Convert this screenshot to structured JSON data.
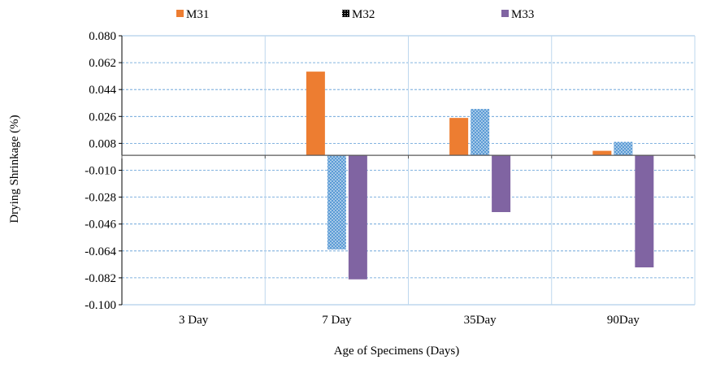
{
  "chart_data": {
    "type": "bar",
    "categories": [
      "3 Day",
      "7 Day",
      "35Day",
      "90Day"
    ],
    "series": [
      {
        "name": "M31",
        "values": [
          0,
          0.056,
          0.025,
          0.003
        ],
        "color": "#ED7D31",
        "pattern": "solid"
      },
      {
        "name": "M32",
        "values": [
          0,
          -0.063,
          0.031,
          0.009
        ],
        "color": "#5B9BD5",
        "pattern": "dotted"
      },
      {
        "name": "M33",
        "values": [
          0,
          -0.083,
          -0.038,
          -0.075
        ],
        "color": "#8064A2",
        "pattern": "solid"
      }
    ],
    "y_ticks": [
      "0.080",
      "0.062",
      "0.044",
      "0.026",
      "0.008",
      "-0.010",
      "-0.028",
      "-0.046",
      "-0.064",
      "-0.082",
      "-0.100"
    ],
    "ylim": [
      -0.1,
      0.08
    ],
    "xlabel": "Age of Specimens (Days)",
    "ylabel": "Drying Shrinkage (%)",
    "grid": "dashed horizontal and vertical category separators",
    "legend_position": "top"
  }
}
